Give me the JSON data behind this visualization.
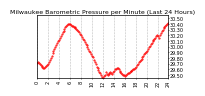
{
  "title": "Milwaukee Barometric Pressure per Minute (Last 24 Hours)",
  "title_fontsize": 4.5,
  "background_color": "#ffffff",
  "plot_bg_color": "#ffffff",
  "grid_color": "#bbbbbb",
  "line_color": "#ff0000",
  "marker": ".",
  "markersize": 1.0,
  "ylim": [
    29.45,
    30.55
  ],
  "yticks": [
    29.5,
    29.6,
    29.7,
    29.8,
    29.9,
    30.0,
    30.1,
    30.2,
    30.3,
    30.4,
    30.5
  ],
  "ytick_labels": [
    "29.50",
    "29.60",
    "29.70",
    "29.80",
    "29.90",
    "30.00",
    "30.10",
    "30.20",
    "30.30",
    "30.40",
    "30.50"
  ],
  "x_data": [
    0,
    1,
    2,
    3,
    4,
    5,
    6,
    7,
    8,
    9,
    10,
    11,
    12,
    13,
    14,
    15,
    16,
    17,
    18,
    19,
    20,
    21,
    22,
    23,
    24,
    25,
    26,
    27,
    28,
    29,
    30,
    31,
    32,
    33,
    34,
    35,
    36,
    37,
    38,
    39,
    40,
    41,
    42,
    43,
    44,
    45,
    46,
    47,
    48,
    49,
    50,
    51,
    52,
    53,
    54,
    55,
    56,
    57,
    58,
    59,
    60,
    61,
    62,
    63,
    64,
    65,
    66,
    67,
    68,
    69,
    70,
    71,
    72,
    73,
    74,
    75,
    76,
    77,
    78,
    79,
    80,
    81,
    82,
    83,
    84,
    85,
    86,
    87,
    88,
    89,
    90,
    91,
    92,
    93,
    94,
    95,
    96,
    97,
    98,
    99,
    100,
    101,
    102,
    103,
    104,
    105,
    106,
    107,
    108,
    109,
    110,
    111,
    112,
    113,
    114,
    115,
    116,
    117,
    118,
    119,
    120,
    121,
    122,
    123,
    124,
    125,
    126,
    127,
    128,
    129,
    130,
    131,
    132,
    133,
    134,
    135,
    136,
    137,
    138,
    139,
    140,
    141,
    142,
    143
  ],
  "y_data": [
    29.72,
    29.73,
    29.71,
    29.7,
    29.68,
    29.66,
    29.65,
    29.63,
    29.62,
    29.64,
    29.66,
    29.68,
    29.7,
    29.73,
    29.77,
    29.8,
    29.84,
    29.88,
    29.92,
    29.96,
    30.0,
    30.03,
    30.06,
    30.09,
    30.12,
    30.15,
    30.18,
    30.22,
    30.25,
    30.28,
    30.31,
    30.34,
    30.37,
    30.38,
    30.39,
    30.4,
    30.39,
    30.38,
    30.37,
    30.36,
    30.35,
    30.34,
    30.33,
    30.31,
    30.29,
    30.27,
    30.25,
    30.23,
    30.2,
    30.17,
    30.14,
    30.11,
    30.08,
    30.05,
    30.02,
    29.99,
    29.96,
    29.93,
    29.9,
    29.87,
    29.84,
    29.81,
    29.77,
    29.73,
    29.69,
    29.65,
    29.62,
    29.59,
    29.56,
    29.53,
    29.5,
    29.47,
    29.45,
    29.48,
    29.51,
    29.55,
    29.52,
    29.5,
    29.52,
    29.53,
    29.56,
    29.54,
    29.52,
    29.55,
    29.58,
    29.6,
    29.61,
    29.63,
    29.62,
    29.6,
    29.58,
    29.56,
    29.54,
    29.52,
    29.51,
    29.5,
    29.49,
    29.5,
    29.52,
    29.53,
    29.54,
    29.55,
    29.57,
    29.58,
    29.59,
    29.6,
    29.61,
    29.63,
    29.65,
    29.67,
    29.7,
    29.73,
    29.75,
    29.77,
    29.79,
    29.81,
    29.84,
    29.87,
    29.89,
    29.91,
    29.93,
    29.96,
    29.99,
    30.01,
    30.04,
    30.07,
    30.09,
    30.11,
    30.13,
    30.16,
    30.19,
    30.2,
    30.18,
    30.16,
    30.2,
    30.24,
    30.27,
    30.29,
    30.32,
    30.34,
    30.36,
    30.38,
    30.4,
    30.42
  ],
  "xtick_positions": [
    0,
    12,
    24,
    36,
    48,
    60,
    72,
    84,
    96,
    108,
    120,
    132,
    143
  ],
  "xtick_labels": [
    "0",
    "2",
    "4",
    "6",
    "8",
    "10",
    "12",
    "14",
    "16",
    "18",
    "20",
    "22",
    "24"
  ],
  "tick_fontsize": 3.5,
  "spine_linewidth": 0.5
}
